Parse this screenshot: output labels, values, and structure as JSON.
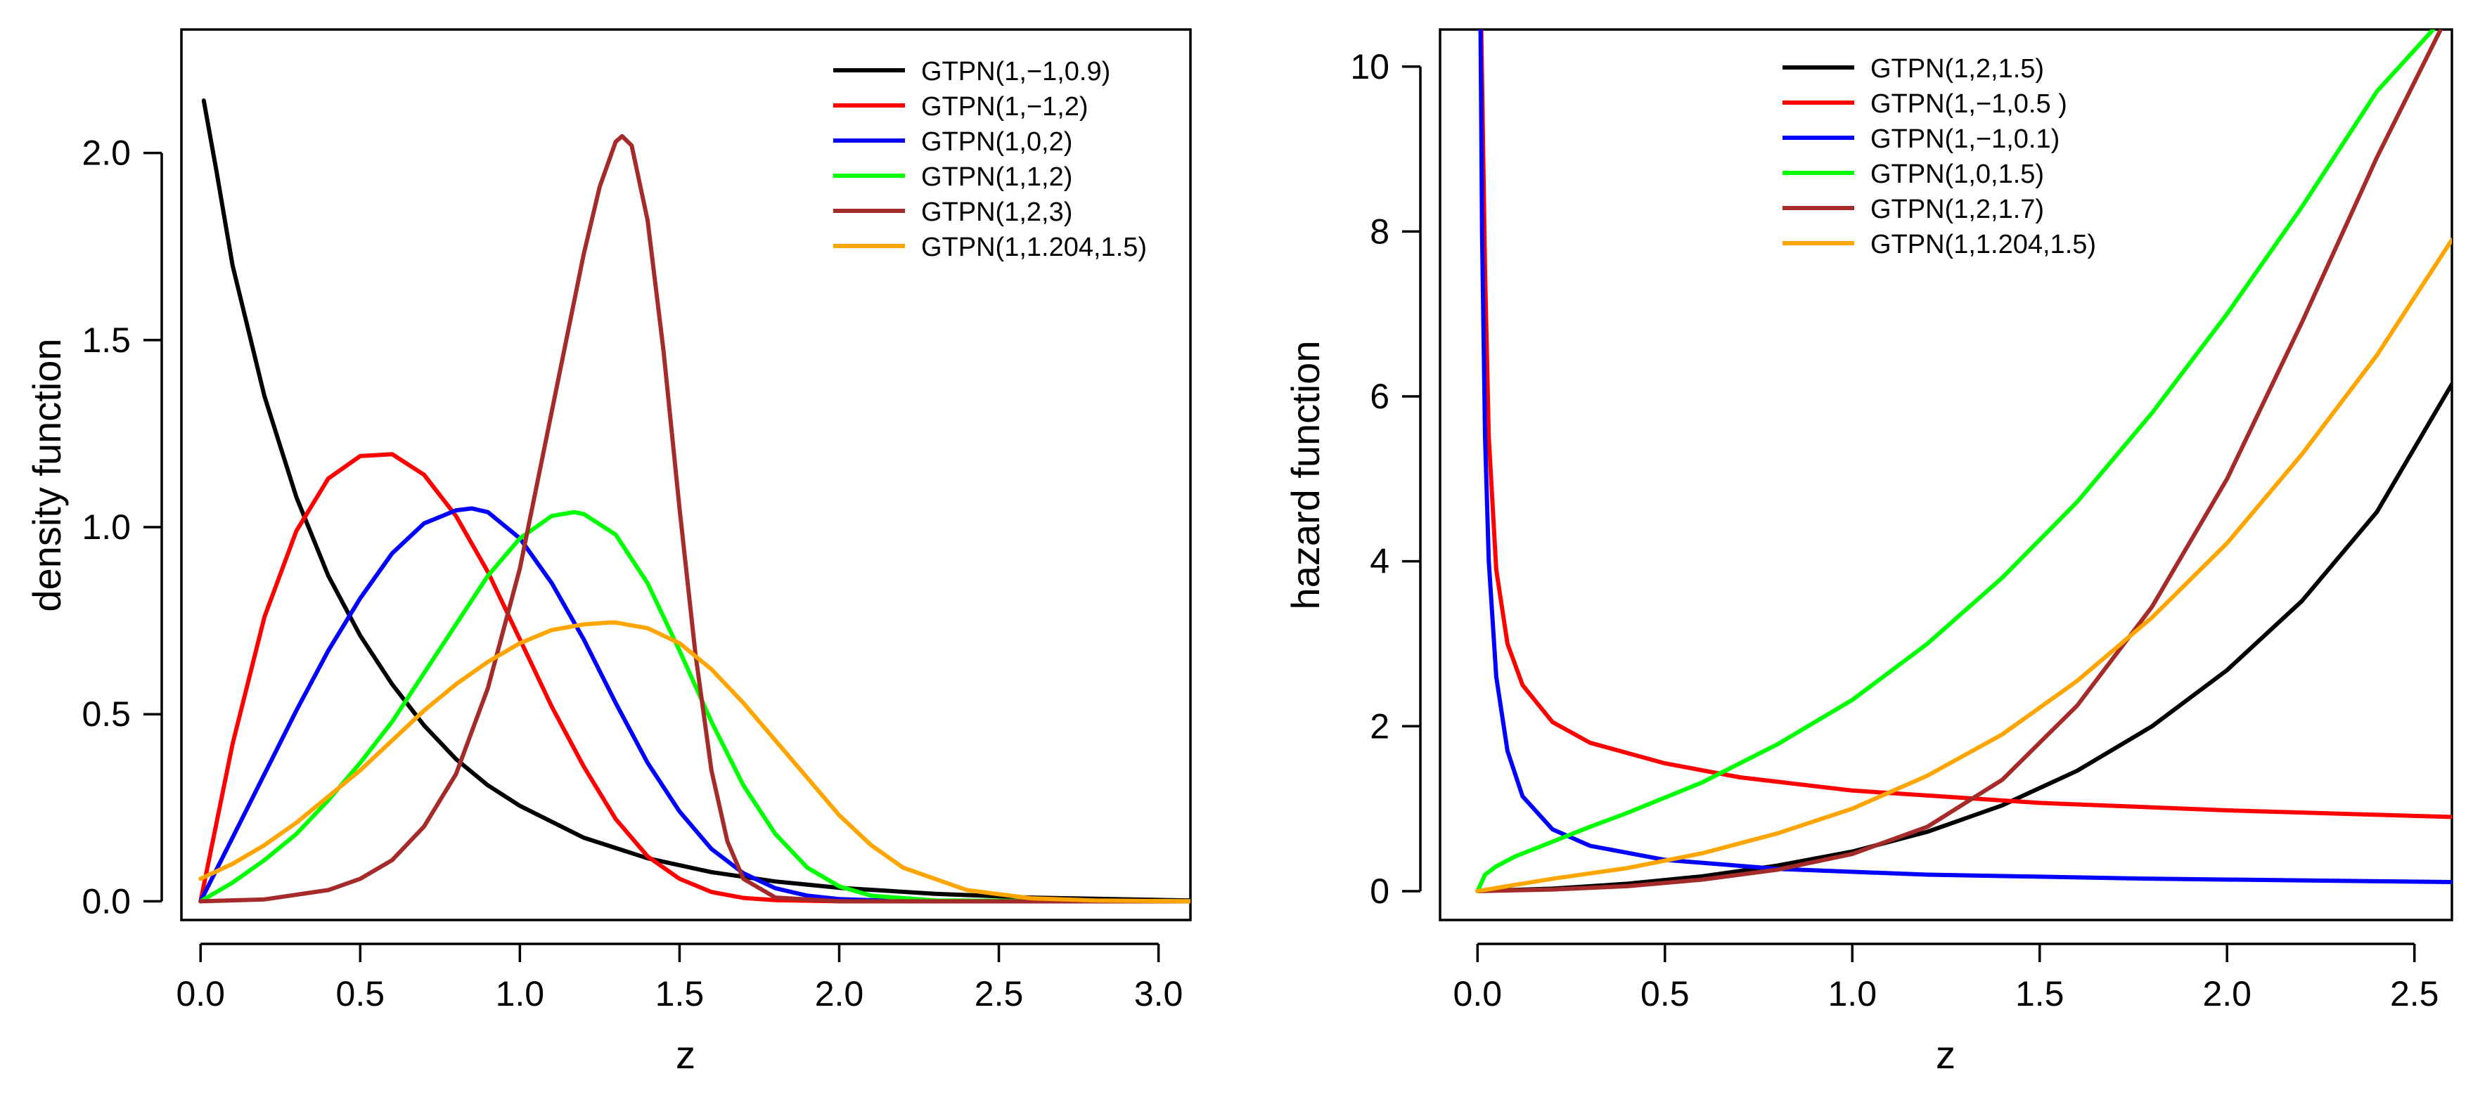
{
  "chart_data": [
    {
      "type": "line",
      "xlabel": "z",
      "ylabel": "density function",
      "xlim": [
        -0.06,
        3.1
      ],
      "ylim": [
        -0.05,
        2.33
      ],
      "xticks": [
        0.0,
        0.5,
        1.0,
        1.5,
        2.0,
        2.5,
        3.0
      ],
      "xtick_labels": [
        "0.0",
        "0.5",
        "1.0",
        "1.5",
        "2.0",
        "2.5",
        "3.0"
      ],
      "yticks": [
        0.0,
        0.5,
        1.0,
        1.5,
        2.0
      ],
      "ytick_labels": [
        "0.0",
        "0.5",
        "1.0",
        "1.5",
        "2.0"
      ],
      "legend_position": "top-right",
      "series": [
        {
          "name": "GTPN(1,−1,0.9)",
          "color": "#000000",
          "x": [
            0.01,
            0.05,
            0.1,
            0.2,
            0.3,
            0.4,
            0.5,
            0.6,
            0.7,
            0.8,
            0.9,
            1.0,
            1.2,
            1.4,
            1.6,
            1.8,
            2.0,
            2.3,
            2.6,
            3.1
          ],
          "y": [
            2.14,
            1.95,
            1.7,
            1.35,
            1.08,
            0.87,
            0.71,
            0.58,
            0.47,
            0.38,
            0.31,
            0.255,
            0.17,
            0.115,
            0.078,
            0.053,
            0.036,
            0.02,
            0.01,
            0.002
          ]
        },
        {
          "name": "GTPN(1,−1,2)",
          "color": "#ff0000",
          "x": [
            0.0,
            0.1,
            0.2,
            0.3,
            0.4,
            0.5,
            0.6,
            0.7,
            0.8,
            0.9,
            1.0,
            1.1,
            1.2,
            1.3,
            1.4,
            1.5,
            1.6,
            1.7,
            1.8,
            2.0,
            3.1
          ],
          "y": [
            0.0,
            0.42,
            0.76,
            0.99,
            1.13,
            1.19,
            1.195,
            1.14,
            1.03,
            0.88,
            0.7,
            0.52,
            0.36,
            0.22,
            0.12,
            0.06,
            0.025,
            0.009,
            0.003,
            0.0,
            0.0
          ]
        },
        {
          "name": "GTPN(1,0,2)",
          "color": "#0000ff",
          "x": [
            0.0,
            0.1,
            0.2,
            0.3,
            0.4,
            0.5,
            0.6,
            0.7,
            0.8,
            0.85,
            0.9,
            1.0,
            1.1,
            1.2,
            1.3,
            1.4,
            1.5,
            1.6,
            1.7,
            1.8,
            1.9,
            2.0,
            2.2,
            3.1
          ],
          "y": [
            0.0,
            0.17,
            0.34,
            0.51,
            0.67,
            0.81,
            0.93,
            1.01,
            1.045,
            1.05,
            1.04,
            0.97,
            0.85,
            0.7,
            0.53,
            0.37,
            0.24,
            0.14,
            0.075,
            0.035,
            0.015,
            0.006,
            0.0,
            0.0
          ]
        },
        {
          "name": "GTPN(1,1,2)",
          "color": "#00ff00",
          "x": [
            0.0,
            0.1,
            0.2,
            0.3,
            0.4,
            0.5,
            0.6,
            0.7,
            0.8,
            0.9,
            1.0,
            1.1,
            1.17,
            1.2,
            1.3,
            1.4,
            1.5,
            1.6,
            1.7,
            1.8,
            1.9,
            2.0,
            2.1,
            2.3,
            3.1
          ],
          "y": [
            0.0,
            0.05,
            0.11,
            0.18,
            0.27,
            0.37,
            0.48,
            0.61,
            0.74,
            0.87,
            0.97,
            1.03,
            1.04,
            1.035,
            0.98,
            0.85,
            0.67,
            0.48,
            0.31,
            0.18,
            0.09,
            0.04,
            0.015,
            0.002,
            0.0
          ]
        },
        {
          "name": "GTPN(1,2,3)",
          "color": "#a52a2a",
          "x": [
            0.0,
            0.2,
            0.4,
            0.5,
            0.6,
            0.7,
            0.8,
            0.9,
            1.0,
            1.1,
            1.2,
            1.25,
            1.3,
            1.32,
            1.35,
            1.4,
            1.45,
            1.5,
            1.55,
            1.6,
            1.65,
            1.7,
            1.8,
            2.0,
            3.1
          ],
          "y": [
            0.0,
            0.005,
            0.03,
            0.06,
            0.11,
            0.2,
            0.34,
            0.57,
            0.89,
            1.31,
            1.73,
            1.91,
            2.03,
            2.045,
            2.02,
            1.82,
            1.47,
            1.05,
            0.66,
            0.35,
            0.16,
            0.06,
            0.01,
            0.0,
            0.0
          ]
        },
        {
          "name": "GTPN(1,1.204,1.5)",
          "color": "#ffa500",
          "x": [
            0.0,
            0.1,
            0.2,
            0.3,
            0.4,
            0.5,
            0.6,
            0.7,
            0.8,
            0.9,
            1.0,
            1.1,
            1.2,
            1.28,
            1.3,
            1.4,
            1.5,
            1.6,
            1.7,
            1.8,
            1.9,
            2.0,
            2.1,
            2.2,
            2.4,
            2.6,
            2.8,
            3.1
          ],
          "y": [
            0.06,
            0.1,
            0.15,
            0.21,
            0.28,
            0.35,
            0.43,
            0.51,
            0.58,
            0.64,
            0.69,
            0.725,
            0.74,
            0.745,
            0.745,
            0.73,
            0.69,
            0.62,
            0.53,
            0.43,
            0.33,
            0.23,
            0.15,
            0.09,
            0.03,
            0.008,
            0.002,
            0.0
          ]
        }
      ]
    },
    {
      "type": "line",
      "xlabel": "z",
      "ylabel": "hazard function",
      "xlim": [
        -0.1,
        2.6
      ],
      "ylim": [
        -0.35,
        10.45
      ],
      "xticks": [
        0.0,
        0.5,
        1.0,
        1.5,
        2.0,
        2.5
      ],
      "xtick_labels": [
        "0.0",
        "0.5",
        "1.0",
        "1.5",
        "2.0",
        "2.5"
      ],
      "yticks": [
        0,
        2,
        4,
        6,
        8,
        10
      ],
      "ytick_labels": [
        "0",
        "2",
        "4",
        "6",
        "8",
        "10"
      ],
      "legend_position": "top-center",
      "series": [
        {
          "name": "GTPN(1,2,1.5)",
          "color": "#000000",
          "x": [
            0.0,
            0.2,
            0.4,
            0.6,
            0.8,
            1.0,
            1.2,
            1.4,
            1.6,
            1.8,
            2.0,
            2.2,
            2.4,
            2.6
          ],
          "y": [
            0.0,
            0.03,
            0.09,
            0.18,
            0.31,
            0.48,
            0.72,
            1.04,
            1.46,
            2.0,
            2.68,
            3.52,
            4.6,
            6.15
          ]
        },
        {
          "name": "GTPN(1,−1,0.5 )",
          "color": "#ff0000",
          "x": [
            0.01,
            0.02,
            0.03,
            0.05,
            0.08,
            0.12,
            0.2,
            0.3,
            0.5,
            0.7,
            1.0,
            1.5,
            2.0,
            2.6
          ],
          "y": [
            10.45,
            7.5,
            5.5,
            3.9,
            3.0,
            2.5,
            2.05,
            1.8,
            1.55,
            1.38,
            1.22,
            1.07,
            0.98,
            0.9
          ]
        },
        {
          "name": "GTPN(1,−1,0.1)",
          "color": "#0000ff",
          "x": [
            0.008,
            0.012,
            0.02,
            0.03,
            0.05,
            0.08,
            0.12,
            0.2,
            0.3,
            0.5,
            0.8,
            1.2,
            1.8,
            2.6
          ],
          "y": [
            10.45,
            8.0,
            5.5,
            4.0,
            2.6,
            1.7,
            1.15,
            0.75,
            0.55,
            0.38,
            0.27,
            0.2,
            0.15,
            0.11
          ]
        },
        {
          "name": "GTPN(1,0,1.5)",
          "color": "#00ff00",
          "x": [
            0.0,
            0.02,
            0.05,
            0.1,
            0.2,
            0.3,
            0.4,
            0.6,
            0.8,
            1.0,
            1.2,
            1.4,
            1.6,
            1.8,
            2.0,
            2.2,
            2.4,
            2.55
          ],
          "y": [
            0.0,
            0.2,
            0.3,
            0.42,
            0.6,
            0.78,
            0.95,
            1.32,
            1.78,
            2.32,
            3.0,
            3.8,
            4.72,
            5.8,
            7.0,
            8.3,
            9.7,
            10.45
          ]
        },
        {
          "name": "GTPN(1,2,1.7)",
          "color": "#a52a2a",
          "x": [
            0.0,
            0.2,
            0.4,
            0.6,
            0.8,
            1.0,
            1.2,
            1.4,
            1.6,
            1.8,
            2.0,
            2.2,
            2.4,
            2.57
          ],
          "y": [
            0.0,
            0.02,
            0.06,
            0.14,
            0.26,
            0.45,
            0.78,
            1.35,
            2.25,
            3.45,
            5.0,
            6.9,
            8.9,
            10.45
          ]
        },
        {
          "name": "GTPN(1,1.204,1.5)",
          "color": "#ffa500",
          "x": [
            0.0,
            0.2,
            0.4,
            0.6,
            0.8,
            1.0,
            1.2,
            1.4,
            1.6,
            1.8,
            2.0,
            2.2,
            2.4,
            2.6
          ],
          "y": [
            0.0,
            0.15,
            0.28,
            0.46,
            0.7,
            1.0,
            1.4,
            1.9,
            2.55,
            3.32,
            4.22,
            5.3,
            6.5,
            7.9
          ]
        }
      ]
    }
  ]
}
